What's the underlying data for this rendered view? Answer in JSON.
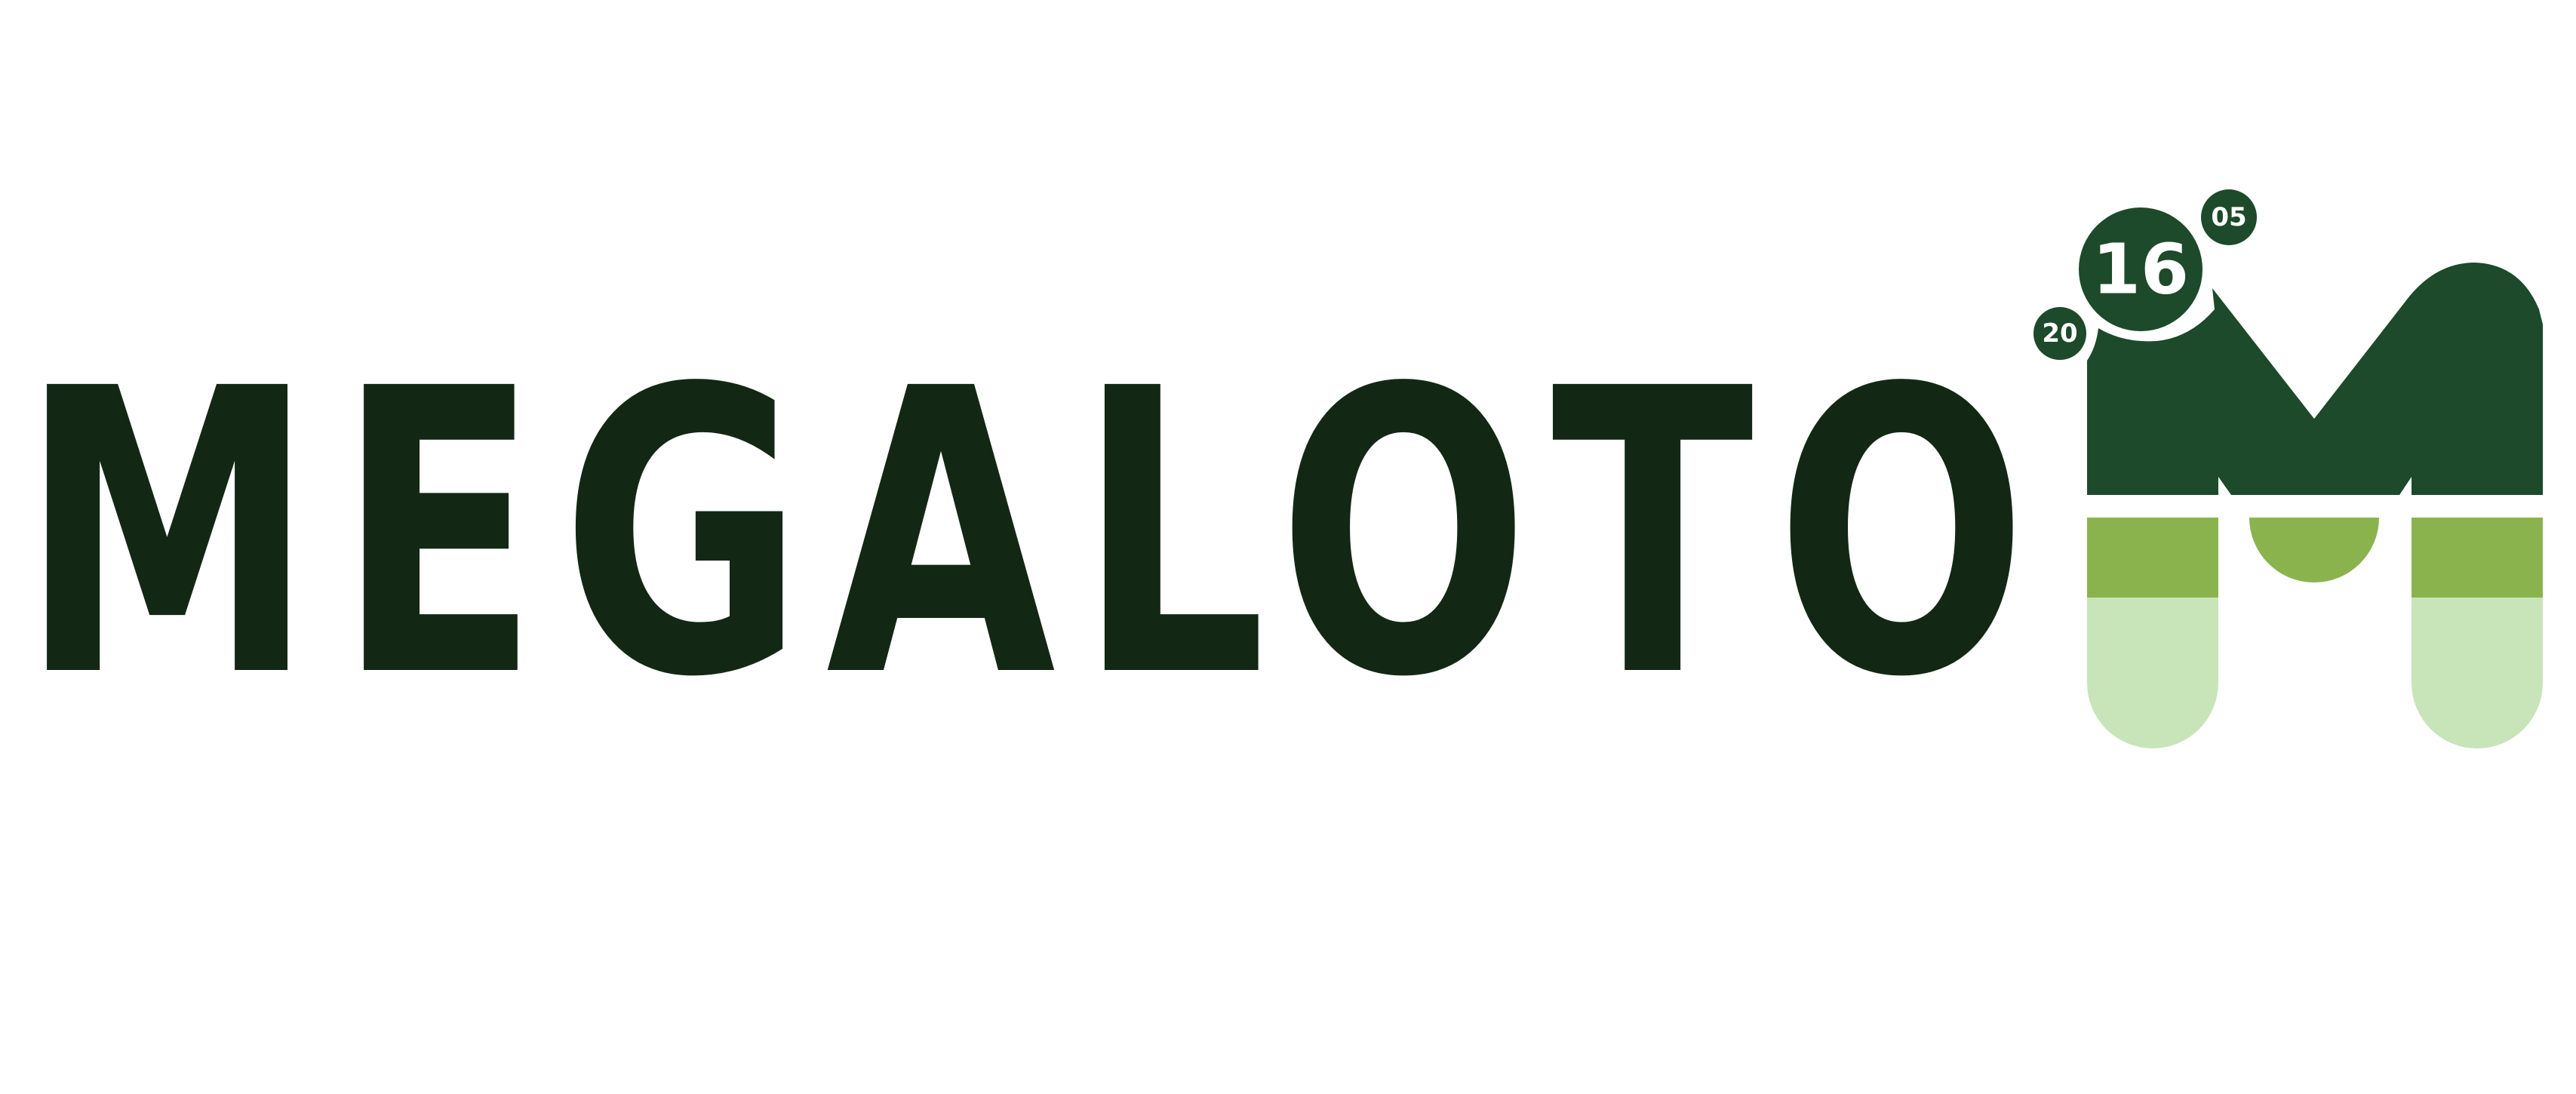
{
  "logo": {
    "wordmark": "MEGALOTO",
    "balls": {
      "small_left": "20",
      "large_center": "16",
      "small_right": "05"
    }
  },
  "colors": {
    "wordmark": "#132814",
    "dark_green": "#1d4a2a",
    "medium_green": "#8ab34e",
    "light_green": "#c8e4b9",
    "ball_text": "#ffffff",
    "background": "#ffffff"
  }
}
